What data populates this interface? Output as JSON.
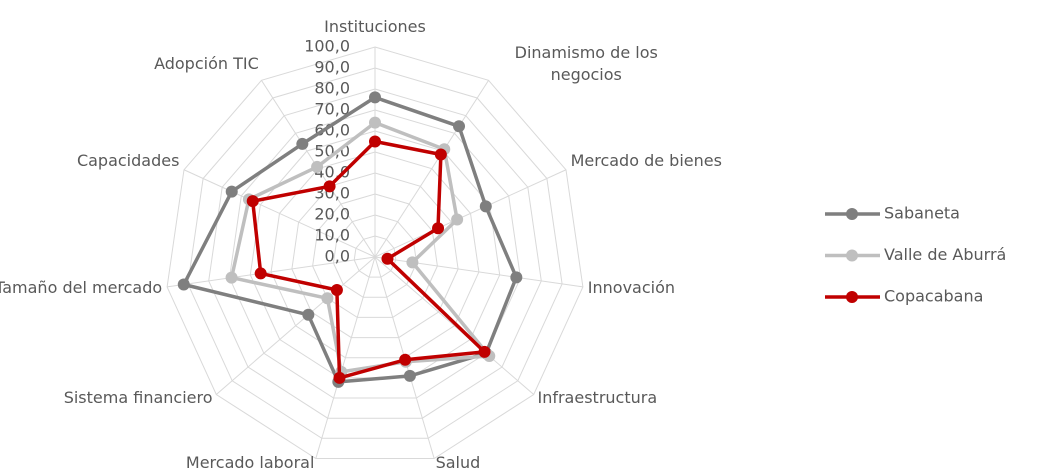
{
  "chart_data": {
    "type": "radar",
    "categories": [
      "Instituciones",
      "Dinamismo de los negocios",
      "Mercado de bienes",
      "Innovación",
      "Infraestructura",
      "Salud",
      "Mercado laboral",
      "Sistema financiero",
      "Tamaño del mercado",
      "Capacidades",
      "Adopción TIC"
    ],
    "series": [
      {
        "name": "Sabaneta",
        "color": "#7f7f7f",
        "values": [
          76,
          74,
          58,
          68,
          70,
          59,
          62,
          42,
          92,
          75,
          64
        ]
      },
      {
        "name": "Valle de Aburrá",
        "color": "#bfbfbf",
        "values": [
          64,
          61,
          43,
          18,
          72,
          52,
          57,
          30,
          69,
          66,
          51
        ]
      },
      {
        "name": "Copacabana",
        "color": "#c00000",
        "values": [
          55,
          58,
          33,
          6,
          69,
          51,
          60,
          24,
          55,
          64,
          40
        ]
      }
    ],
    "ylim": [
      0,
      100
    ],
    "yticks": [
      {
        "value": 0,
        "label": "0,0"
      },
      {
        "value": 10,
        "label": "10,0"
      },
      {
        "value": 20,
        "label": "20,0"
      },
      {
        "value": 30,
        "label": "30,0"
      },
      {
        "value": 40,
        "label": "40,0"
      },
      {
        "value": 50,
        "label": "50,0"
      },
      {
        "value": 60,
        "label": "60,0"
      },
      {
        "value": 70,
        "label": "70,0"
      },
      {
        "value": 80,
        "label": "80,0"
      },
      {
        "value": 90,
        "label": "90,0"
      },
      {
        "value": 100,
        "label": "100,0"
      }
    ],
    "grid": true,
    "legend": "right"
  }
}
